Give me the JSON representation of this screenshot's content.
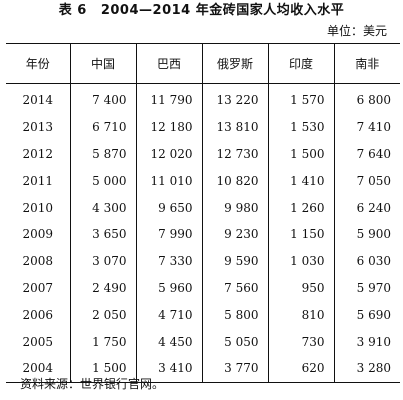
{
  "table_number": "表 6",
  "title": "2004—2014 年金砖国家人均收入水平",
  "unit": "单位：美元",
  "headers": [
    "年份",
    "中国",
    "巴西",
    "俄罗斯",
    "印度",
    "南非"
  ],
  "rows": [
    [
      "2014",
      "7 400",
      "11 790",
      "13 220",
      "1 570",
      "6 800"
    ],
    [
      "2013",
      "6 710",
      "12 180",
      "13 810",
      "1 530",
      "7 410"
    ],
    [
      "2012",
      "5 870",
      "12 020",
      "12 730",
      "1 500",
      "7 640"
    ],
    [
      "2011",
      "5 000",
      "11 010",
      "10 820",
      "1 410",
      "7 050"
    ],
    [
      "2010",
      "4 300",
      "9 650",
      "9 980",
      "1 260",
      "6 240"
    ],
    [
      "2009",
      "3 650",
      "7 990",
      "9 230",
      "1 150",
      "5 900"
    ],
    [
      "2008",
      "3 070",
      "7 330",
      "9 590",
      "1 030",
      "6 030"
    ],
    [
      "2007",
      "2 490",
      "5 960",
      "7 560",
      "950",
      "5 970"
    ],
    [
      "2006",
      "2 050",
      "4 710",
      "5 800",
      "810",
      "5 690"
    ],
    [
      "2005",
      "1 750",
      "4 450",
      "5 050",
      "730",
      "3 910"
    ],
    [
      "2004",
      "1 500",
      "3 410",
      "3 770",
      "620",
      "3 280"
    ]
  ],
  "source_note": "资料来源：世界银行官网。"
}
